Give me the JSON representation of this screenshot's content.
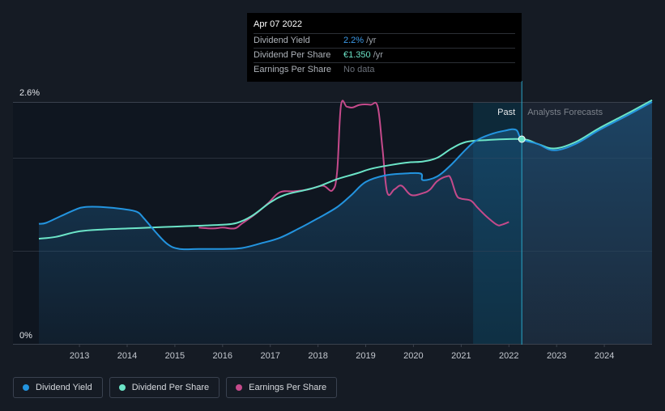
{
  "colors": {
    "dividend_yield": "#2394df",
    "dividend_per_share": "#6ce5c8",
    "earnings_per_share": "#c54a8b",
    "background": "#151b24"
  },
  "tooltip": {
    "date": "Apr 07 2022",
    "rows": [
      {
        "name": "Dividend Yield",
        "value": "2.2%",
        "unit": " /yr",
        "color": "#3d9be9"
      },
      {
        "name": "Dividend Per Share",
        "value": "€1.350",
        "unit": " /yr",
        "color": "#6ce5c8"
      },
      {
        "name": "Earnings Per Share",
        "value": "No data",
        "unit": "",
        "color": "#6b717a"
      }
    ]
  },
  "legend": [
    {
      "label": "Dividend Yield",
      "color": "#2394df"
    },
    {
      "label": "Dividend Per Share",
      "color": "#6ce5c8"
    },
    {
      "label": "Earnings Per Share",
      "color": "#c54a8b"
    }
  ],
  "chart_data": {
    "type": "line",
    "title": "",
    "xlabel": "",
    "ylabel": "",
    "y_axis_labels": [
      "2.6%",
      "0%"
    ],
    "ylim": [
      0,
      2.6
    ],
    "xlim": [
      2012.15,
      2025.0
    ],
    "x_ticks": [
      2013,
      2014,
      2015,
      2016,
      2017,
      2018,
      2019,
      2020,
      2021,
      2022,
      2023,
      2024
    ],
    "x_tick_labels": [
      "2013",
      "2014",
      "2015",
      "2016",
      "2017",
      "2018",
      "2019",
      "2020",
      "2021",
      "2022",
      "2023",
      "2024"
    ],
    "regions": {
      "past_label": "Past",
      "forecast_label": "Analysts Forecasts",
      "highlight_start": 2021.25,
      "now": 2022.27
    },
    "series": [
      {
        "name": "Dividend Yield",
        "key": "dividend_yield",
        "filled": true,
        "points": [
          [
            2012.15,
            1.29
          ],
          [
            2012.3,
            1.3
          ],
          [
            2012.6,
            1.37
          ],
          [
            2012.9,
            1.44
          ],
          [
            2013.1,
            1.47
          ],
          [
            2013.5,
            1.47
          ],
          [
            2013.9,
            1.45
          ],
          [
            2014.2,
            1.42
          ],
          [
            2014.35,
            1.35
          ],
          [
            2014.6,
            1.2
          ],
          [
            2014.85,
            1.07
          ],
          [
            2015.1,
            1.02
          ],
          [
            2015.5,
            1.02
          ],
          [
            2016.0,
            1.02
          ],
          [
            2016.4,
            1.03
          ],
          [
            2016.8,
            1.08
          ],
          [
            2017.2,
            1.14
          ],
          [
            2017.6,
            1.24
          ],
          [
            2018.0,
            1.35
          ],
          [
            2018.4,
            1.47
          ],
          [
            2018.7,
            1.6
          ],
          [
            2019.0,
            1.74
          ],
          [
            2019.4,
            1.81
          ],
          [
            2019.8,
            1.83
          ],
          [
            2020.15,
            1.83
          ],
          [
            2020.2,
            1.76
          ],
          [
            2020.5,
            1.8
          ],
          [
            2020.8,
            1.93
          ],
          [
            2021.1,
            2.09
          ],
          [
            2021.3,
            2.18
          ],
          [
            2021.6,
            2.25
          ],
          [
            2021.9,
            2.29
          ],
          [
            2022.15,
            2.3
          ],
          [
            2022.27,
            2.2
          ],
          [
            2022.6,
            2.15
          ],
          [
            2022.95,
            2.08
          ],
          [
            2023.4,
            2.15
          ],
          [
            2023.9,
            2.3
          ],
          [
            2024.5,
            2.46
          ],
          [
            2025.0,
            2.6
          ]
        ]
      },
      {
        "name": "Dividend Per Share",
        "key": "dividend_per_share",
        "filled": false,
        "points": [
          [
            2012.15,
            1.13
          ],
          [
            2012.5,
            1.15
          ],
          [
            2013.0,
            1.21
          ],
          [
            2013.5,
            1.23
          ],
          [
            2014.0,
            1.24
          ],
          [
            2014.5,
            1.25
          ],
          [
            2015.0,
            1.26
          ],
          [
            2015.5,
            1.27
          ],
          [
            2016.0,
            1.28
          ],
          [
            2016.3,
            1.3
          ],
          [
            2016.6,
            1.37
          ],
          [
            2017.0,
            1.52
          ],
          [
            2017.3,
            1.6
          ],
          [
            2017.7,
            1.65
          ],
          [
            2018.0,
            1.69
          ],
          [
            2018.4,
            1.77
          ],
          [
            2018.8,
            1.83
          ],
          [
            2019.1,
            1.88
          ],
          [
            2019.5,
            1.92
          ],
          [
            2019.9,
            1.95
          ],
          [
            2020.2,
            1.96
          ],
          [
            2020.5,
            2.0
          ],
          [
            2020.8,
            2.1
          ],
          [
            2021.1,
            2.17
          ],
          [
            2021.5,
            2.19
          ],
          [
            2022.27,
            2.2
          ],
          [
            2022.6,
            2.15
          ],
          [
            2022.95,
            2.1
          ],
          [
            2023.4,
            2.17
          ],
          [
            2023.9,
            2.32
          ],
          [
            2024.5,
            2.48
          ],
          [
            2025.0,
            2.62
          ]
        ]
      },
      {
        "name": "Earnings Per Share",
        "key": "earnings_per_share",
        "filled": false,
        "points": [
          [
            2015.5,
            1.25
          ],
          [
            2015.8,
            1.24
          ],
          [
            2016.0,
            1.25
          ],
          [
            2016.25,
            1.24
          ],
          [
            2016.4,
            1.29
          ],
          [
            2016.7,
            1.4
          ],
          [
            2016.95,
            1.51
          ],
          [
            2017.2,
            1.63
          ],
          [
            2017.5,
            1.64
          ],
          [
            2017.8,
            1.66
          ],
          [
            2018.1,
            1.7
          ],
          [
            2018.3,
            1.65
          ],
          [
            2018.4,
            1.85
          ],
          [
            2018.48,
            2.56
          ],
          [
            2018.6,
            2.55
          ],
          [
            2018.72,
            2.54
          ],
          [
            2018.88,
            2.57
          ],
          [
            2019.1,
            2.57
          ],
          [
            2019.25,
            2.55
          ],
          [
            2019.35,
            2.1
          ],
          [
            2019.45,
            1.63
          ],
          [
            2019.6,
            1.66
          ],
          [
            2019.75,
            1.7
          ],
          [
            2019.95,
            1.6
          ],
          [
            2020.2,
            1.62
          ],
          [
            2020.35,
            1.66
          ],
          [
            2020.5,
            1.75
          ],
          [
            2020.7,
            1.8
          ],
          [
            2020.78,
            1.78
          ],
          [
            2020.9,
            1.6
          ],
          [
            2021.0,
            1.56
          ],
          [
            2021.2,
            1.54
          ],
          [
            2021.35,
            1.46
          ],
          [
            2021.55,
            1.36
          ],
          [
            2021.75,
            1.28
          ],
          [
            2021.85,
            1.28
          ],
          [
            2022.0,
            1.31
          ]
        ]
      }
    ]
  }
}
